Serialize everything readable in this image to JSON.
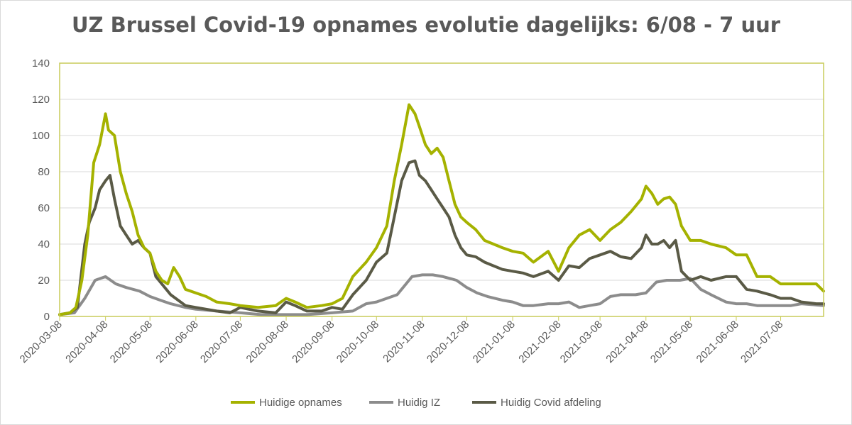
{
  "chart_data": {
    "type": "line",
    "title": "UZ Brussel Covid-19 opnames evolutie dagelijks: 6/08 - 7 uur",
    "xlabel": "",
    "ylabel": "",
    "ylim": [
      0,
      140
    ],
    "yticks": [
      "0",
      "20",
      "40",
      "60",
      "80",
      "100",
      "120",
      "140"
    ],
    "xticks": [
      "2020-03-08",
      "2020-04-08",
      "2020-05-08",
      "2020-06-08",
      "2020-07-08",
      "2020-08-08",
      "2020-09-08",
      "2020-10-08",
      "2020-11-08",
      "2020-12-08",
      "2021-01-08",
      "2021-02-08",
      "2021-03-08",
      "2021-04-08",
      "2021-05-08",
      "2021-06-08",
      "2021-07-08"
    ],
    "xlim": [
      "2020-03-08",
      "2021-08-06"
    ],
    "grid": "horizontal",
    "legend": "bottom",
    "colors": {
      "opnames": "#a5b200",
      "iz": "#8c8c8c",
      "afdeling": "#5a5a46",
      "axis": "#c9cc5a",
      "grid": "#d9d9d9"
    },
    "series": [
      {
        "name": "Huidige opnames",
        "x": [
          "2020-03-08",
          "2020-03-15",
          "2020-03-19",
          "2020-03-23",
          "2020-03-27",
          "2020-03-31",
          "2020-04-04",
          "2020-04-08",
          "2020-04-10",
          "2020-04-14",
          "2020-04-18",
          "2020-04-22",
          "2020-04-26",
          "2020-04-30",
          "2020-05-04",
          "2020-05-08",
          "2020-05-12",
          "2020-05-16",
          "2020-05-20",
          "2020-05-24",
          "2020-05-28",
          "2020-06-01",
          "2020-06-08",
          "2020-06-15",
          "2020-06-22",
          "2020-07-01",
          "2020-07-08",
          "2020-07-20",
          "2020-08-01",
          "2020-08-08",
          "2020-08-14",
          "2020-08-22",
          "2020-09-01",
          "2020-09-08",
          "2020-09-15",
          "2020-09-22",
          "2020-10-01",
          "2020-10-08",
          "2020-10-15",
          "2020-10-20",
          "2020-10-25",
          "2020-10-30",
          "2020-11-03",
          "2020-11-06",
          "2020-11-10",
          "2020-11-14",
          "2020-11-18",
          "2020-11-22",
          "2020-11-26",
          "2020-11-30",
          "2020-12-04",
          "2020-12-08",
          "2020-12-14",
          "2020-12-20",
          "2020-12-26",
          "2021-01-01",
          "2021-01-08",
          "2021-01-15",
          "2021-01-22",
          "2021-02-01",
          "2021-02-08",
          "2021-02-15",
          "2021-02-22",
          "2021-03-01",
          "2021-03-08",
          "2021-03-15",
          "2021-03-22",
          "2021-03-29",
          "2021-04-05",
          "2021-04-08",
          "2021-04-12",
          "2021-04-16",
          "2021-04-20",
          "2021-04-24",
          "2021-04-28",
          "2021-05-02",
          "2021-05-08",
          "2021-05-15",
          "2021-05-22",
          "2021-06-01",
          "2021-06-08",
          "2021-06-15",
          "2021-06-22",
          "2021-07-01",
          "2021-07-08",
          "2021-07-15",
          "2021-07-22",
          "2021-08-01",
          "2021-08-06"
        ],
        "values": [
          1,
          2,
          5,
          20,
          45,
          85,
          95,
          112,
          103,
          100,
          80,
          68,
          58,
          45,
          38,
          35,
          25,
          20,
          18,
          27,
          22,
          15,
          13,
          11,
          8,
          7,
          6,
          5,
          6,
          10,
          8,
          5,
          6,
          7,
          10,
          22,
          30,
          38,
          50,
          75,
          95,
          117,
          112,
          105,
          95,
          90,
          93,
          88,
          75,
          62,
          55,
          52,
          48,
          42,
          40,
          38,
          36,
          35,
          30,
          36,
          25,
          38,
          45,
          48,
          42,
          48,
          52,
          58,
          65,
          72,
          68,
          62,
          65,
          66,
          62,
          50,
          42,
          42,
          40,
          38,
          34,
          34,
          22,
          22,
          18,
          18,
          18,
          18,
          14
        ]
      },
      {
        "name": "Huidig IZ",
        "x": [
          "2020-03-08",
          "2020-03-18",
          "2020-03-25",
          "2020-04-01",
          "2020-04-08",
          "2020-04-15",
          "2020-04-22",
          "2020-05-01",
          "2020-05-08",
          "2020-05-15",
          "2020-05-22",
          "2020-06-01",
          "2020-06-08",
          "2020-06-22",
          "2020-07-08",
          "2020-07-22",
          "2020-08-08",
          "2020-08-22",
          "2020-09-08",
          "2020-09-22",
          "2020-10-01",
          "2020-10-08",
          "2020-10-15",
          "2020-10-22",
          "2020-11-01",
          "2020-11-08",
          "2020-11-15",
          "2020-11-22",
          "2020-12-01",
          "2020-12-08",
          "2020-12-15",
          "2020-12-22",
          "2021-01-01",
          "2021-01-08",
          "2021-01-15",
          "2021-01-22",
          "2021-02-01",
          "2021-02-08",
          "2021-02-15",
          "2021-02-22",
          "2021-03-01",
          "2021-03-08",
          "2021-03-15",
          "2021-03-22",
          "2021-04-01",
          "2021-04-08",
          "2021-04-15",
          "2021-04-22",
          "2021-05-01",
          "2021-05-08",
          "2021-05-15",
          "2021-05-22",
          "2021-06-01",
          "2021-06-08",
          "2021-06-15",
          "2021-06-22",
          "2021-07-01",
          "2021-07-08",
          "2021-07-15",
          "2021-07-22",
          "2021-08-06"
        ],
        "values": [
          1,
          2,
          10,
          20,
          22,
          18,
          16,
          14,
          11,
          9,
          7,
          5,
          4,
          3,
          2,
          1,
          1,
          1,
          2,
          3,
          7,
          8,
          10,
          12,
          22,
          23,
          23,
          22,
          20,
          16,
          13,
          11,
          9,
          8,
          6,
          6,
          7,
          7,
          8,
          5,
          6,
          7,
          11,
          12,
          12,
          13,
          19,
          20,
          20,
          21,
          15,
          12,
          8,
          7,
          7,
          6,
          6,
          6,
          6,
          7,
          6
        ]
      },
      {
        "name": "Huidig Covid afdeling",
        "x": [
          "2020-03-08",
          "2020-03-15",
          "2020-03-20",
          "2020-03-25",
          "2020-03-28",
          "2020-04-01",
          "2020-04-04",
          "2020-04-08",
          "2020-04-11",
          "2020-04-14",
          "2020-04-18",
          "2020-04-22",
          "2020-04-26",
          "2020-04-30",
          "2020-05-04",
          "2020-05-08",
          "2020-05-12",
          "2020-05-16",
          "2020-05-22",
          "2020-06-01",
          "2020-06-08",
          "2020-06-15",
          "2020-06-22",
          "2020-07-01",
          "2020-07-08",
          "2020-07-20",
          "2020-08-01",
          "2020-08-08",
          "2020-08-14",
          "2020-08-22",
          "2020-09-01",
          "2020-09-08",
          "2020-09-15",
          "2020-09-22",
          "2020-10-01",
          "2020-10-08",
          "2020-10-15",
          "2020-10-20",
          "2020-10-25",
          "2020-10-30",
          "2020-11-03",
          "2020-11-06",
          "2020-11-10",
          "2020-11-14",
          "2020-11-18",
          "2020-11-22",
          "2020-11-26",
          "2020-11-30",
          "2020-12-04",
          "2020-12-08",
          "2020-12-14",
          "2020-12-20",
          "2020-12-26",
          "2021-01-01",
          "2021-01-08",
          "2021-01-15",
          "2021-01-22",
          "2021-02-01",
          "2021-02-08",
          "2021-02-15",
          "2021-02-22",
          "2021-03-01",
          "2021-03-08",
          "2021-03-15",
          "2021-03-22",
          "2021-03-29",
          "2021-04-05",
          "2021-04-08",
          "2021-04-12",
          "2021-04-16",
          "2021-04-20",
          "2021-04-24",
          "2021-04-28",
          "2021-05-02",
          "2021-05-08",
          "2021-05-15",
          "2021-05-22",
          "2021-06-01",
          "2021-06-08",
          "2021-06-15",
          "2021-06-22",
          "2021-07-01",
          "2021-07-08",
          "2021-07-15",
          "2021-07-22",
          "2021-08-01",
          "2021-08-06"
        ],
        "values": [
          1,
          2,
          5,
          40,
          52,
          60,
          70,
          75,
          78,
          65,
          50,
          45,
          40,
          42,
          38,
          35,
          22,
          18,
          12,
          6,
          5,
          4,
          3,
          2,
          5,
          3,
          2,
          8,
          6,
          3,
          3,
          5,
          4,
          12,
          20,
          30,
          35,
          55,
          75,
          85,
          86,
          78,
          75,
          70,
          65,
          60,
          55,
          45,
          38,
          34,
          33,
          30,
          28,
          26,
          25,
          24,
          22,
          25,
          20,
          28,
          27,
          32,
          34,
          36,
          33,
          32,
          38,
          45,
          40,
          40,
          42,
          38,
          42,
          25,
          20,
          22,
          20,
          22,
          22,
          15,
          14,
          12,
          10,
          10,
          8,
          7,
          7
        ]
      }
    ]
  }
}
